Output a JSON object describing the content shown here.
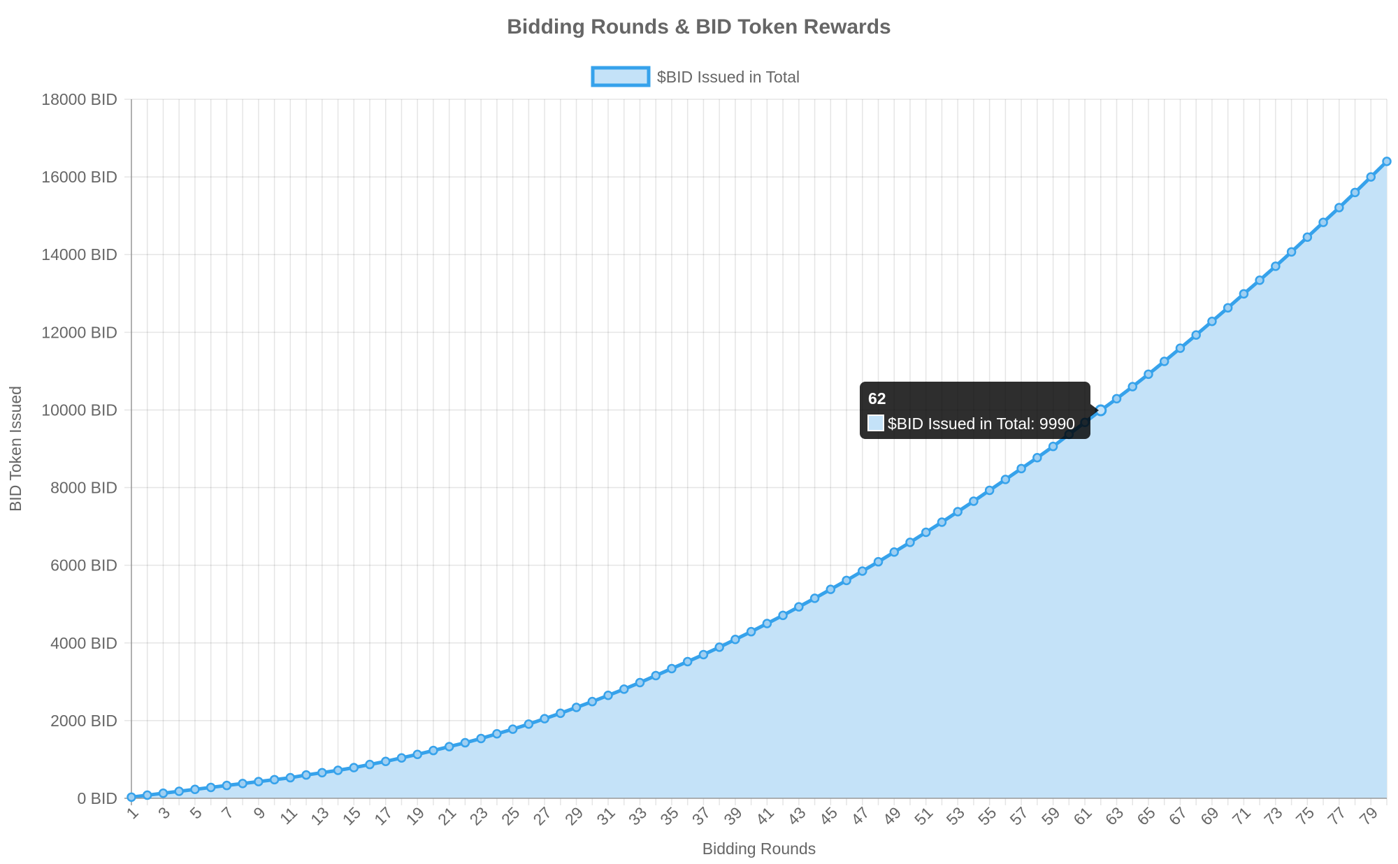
{
  "chart_data": {
    "type": "area",
    "title": "Bidding Rounds & BID Token Rewards",
    "xlabel": "Bidding Rounds",
    "ylabel": "BID Token Issued",
    "y_tick_suffix": " BID",
    "ylim": [
      0,
      18000
    ],
    "y_ticks": [
      0,
      2000,
      4000,
      6000,
      8000,
      10000,
      12000,
      14000,
      16000,
      18000
    ],
    "x_tick_labels_shown": [
      "1",
      "3",
      "5",
      "7",
      "9",
      "11",
      "13",
      "15",
      "17",
      "19",
      "21",
      "23",
      "25",
      "27",
      "29",
      "31",
      "33",
      "35",
      "37",
      "39",
      "41",
      "43",
      "45",
      "47",
      "49",
      "51",
      "53",
      "55",
      "57",
      "59",
      "61",
      "63",
      "65",
      "67",
      "69",
      "71",
      "73",
      "75",
      "77",
      "79"
    ],
    "categories": [
      "1",
      "2",
      "3",
      "4",
      "5",
      "6",
      "7",
      "8",
      "9",
      "10",
      "11",
      "12",
      "13",
      "14",
      "15",
      "16",
      "17",
      "18",
      "19",
      "20",
      "21",
      "22",
      "23",
      "24",
      "25",
      "26",
      "27",
      "28",
      "29",
      "30",
      "31",
      "32",
      "33",
      "34",
      "35",
      "36",
      "37",
      "38",
      "39",
      "40",
      "41",
      "42",
      "43",
      "44",
      "45",
      "46",
      "47",
      "48",
      "49",
      "50",
      "51",
      "52",
      "53",
      "54",
      "55",
      "56",
      "57",
      "58",
      "59",
      "60",
      "61",
      "62",
      "63",
      "64",
      "65",
      "66",
      "67",
      "68",
      "69",
      "70",
      "71",
      "72",
      "73",
      "74",
      "75",
      "76",
      "77",
      "78",
      "79",
      "80"
    ],
    "series": [
      {
        "name": "$BID Issued in Total",
        "color": "#36a2eb",
        "fill": "#c4e2f8",
        "values": [
          30,
          80,
          130,
          180,
          230,
          280,
          330,
          380,
          430,
          480,
          530,
          600,
          660,
          720,
          790,
          870,
          950,
          1040,
          1130,
          1230,
          1330,
          1430,
          1540,
          1660,
          1780,
          1910,
          2050,
          2190,
          2340,
          2490,
          2650,
          2810,
          2980,
          3160,
          3340,
          3520,
          3700,
          3890,
          4090,
          4290,
          4500,
          4710,
          4930,
          5150,
          5380,
          5610,
          5850,
          6090,
          6340,
          6590,
          6850,
          7110,
          7380,
          7650,
          7930,
          8210,
          8490,
          8770,
          9060,
          9370,
          9680,
          9990,
          10290,
          10600,
          10920,
          11250,
          11590,
          11930,
          12280,
          12630,
          12990,
          13340,
          13700,
          14070,
          14450,
          14830,
          15210,
          15600,
          16000,
          16400
        ]
      }
    ],
    "grid": true,
    "legend_position": "top",
    "tooltip": {
      "title": "62",
      "label": "$BID Issued in Total: 9990"
    }
  }
}
